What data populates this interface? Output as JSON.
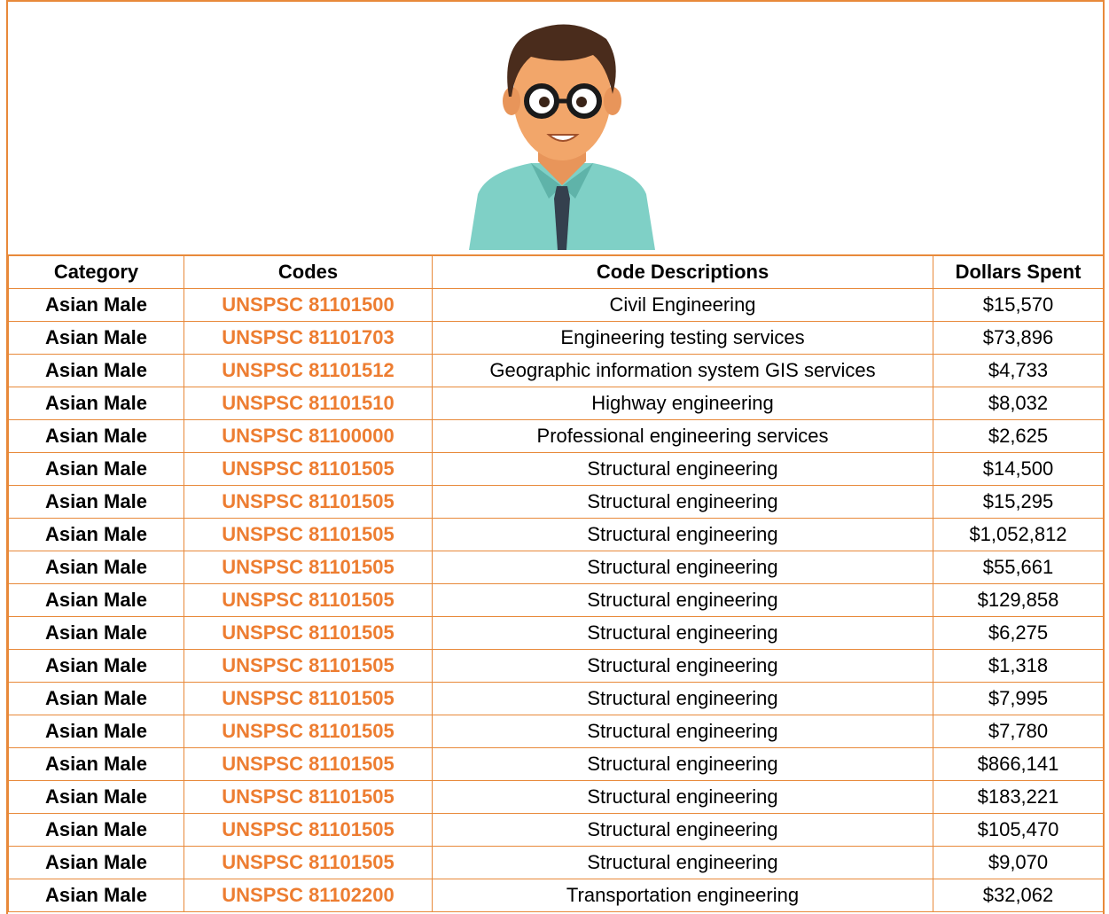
{
  "table": {
    "columns": [
      "Category",
      "Codes",
      "Code Descriptions",
      "Dollars Spent"
    ],
    "rows": [
      [
        "Asian Male",
        "UNSPSC 81101500",
        "Civil Engineering",
        "$15,570"
      ],
      [
        "Asian Male",
        "UNSPSC 81101703",
        "Engineering testing services",
        "$73,896"
      ],
      [
        "Asian Male",
        "UNSPSC 81101512",
        "Geographic information system GIS services",
        "$4,733"
      ],
      [
        "Asian Male",
        "UNSPSC 81101510",
        "Highway engineering",
        "$8,032"
      ],
      [
        "Asian Male",
        "UNSPSC 81100000",
        "Professional engineering services",
        "$2,625"
      ],
      [
        "Asian Male",
        "UNSPSC 81101505",
        "Structural engineering",
        "$14,500"
      ],
      [
        "Asian Male",
        "UNSPSC 81101505",
        "Structural engineering",
        "$15,295"
      ],
      [
        "Asian Male",
        "UNSPSC 81101505",
        "Structural engineering",
        "$1,052,812"
      ],
      [
        "Asian Male",
        "UNSPSC 81101505",
        "Structural engineering",
        "$55,661"
      ],
      [
        "Asian Male",
        "UNSPSC 81101505",
        "Structural engineering",
        "$129,858"
      ],
      [
        "Asian Male",
        "UNSPSC 81101505",
        "Structural engineering",
        "$6,275"
      ],
      [
        "Asian Male",
        "UNSPSC 81101505",
        "Structural engineering",
        "$1,318"
      ],
      [
        "Asian Male",
        "UNSPSC 81101505",
        "Structural engineering",
        "$7,995"
      ],
      [
        "Asian Male",
        "UNSPSC 81101505",
        "Structural engineering",
        "$7,780"
      ],
      [
        "Asian Male",
        "UNSPSC 81101505",
        "Structural engineering",
        "$866,141"
      ],
      [
        "Asian Male",
        "UNSPSC 81101505",
        "Structural engineering",
        "$183,221"
      ],
      [
        "Asian Male",
        "UNSPSC 81101505",
        "Structural engineering",
        "$105,470"
      ],
      [
        "Asian Male",
        "UNSPSC 81101505",
        "Structural engineering",
        "$9,070"
      ],
      [
        "Asian Male",
        "UNSPSC 81102200",
        "Transportation engineering",
        "$32,062"
      ]
    ]
  }
}
